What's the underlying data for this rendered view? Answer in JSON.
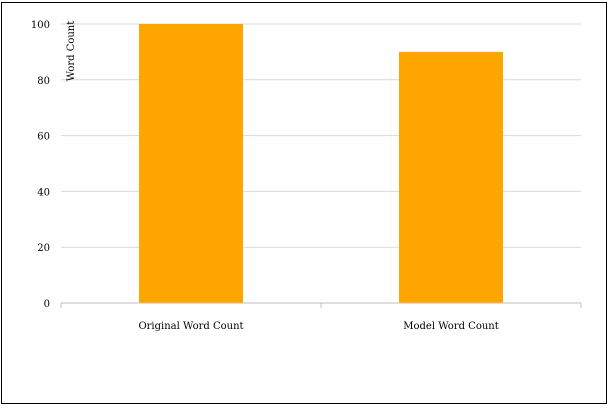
{
  "chart_data": {
    "type": "bar",
    "categories": [
      "Original Word Count",
      "Model Word Count"
    ],
    "values": [
      100,
      90
    ],
    "ylabel": "Word Count",
    "xlabel": "",
    "ylim": [
      0,
      100
    ],
    "yticks": [
      0,
      20,
      40,
      60,
      80,
      100
    ],
    "grid": true,
    "legend": "none",
    "colors": {
      "bar": "#FFA500",
      "grid": "#D9D9D9",
      "axis": "#BFBFBF",
      "frame": "#000000"
    }
  }
}
